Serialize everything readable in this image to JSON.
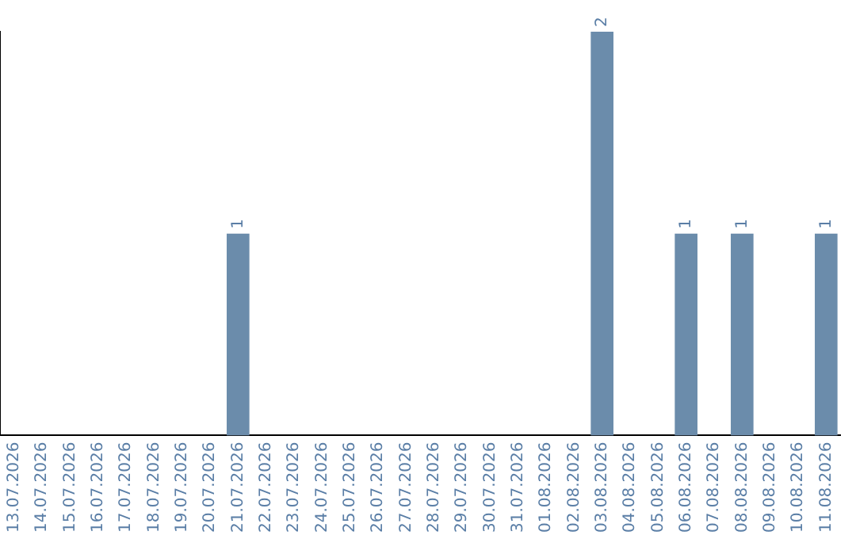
{
  "chart_data": {
    "type": "bar",
    "categories": [
      "13.07.2026",
      "14.07.2026",
      "15.07.2026",
      "16.07.2026",
      "17.07.2026",
      "18.07.2026",
      "19.07.2026",
      "20.07.2026",
      "21.07.2026",
      "22.07.2026",
      "23.07.2026",
      "24.07.2026",
      "25.07.2026",
      "26.07.2026",
      "27.07.2026",
      "28.07.2026",
      "29.07.2026",
      "30.07.2026",
      "31.07.2026",
      "01.08.2026",
      "02.08.2026",
      "03.08.2026",
      "04.08.2026",
      "05.08.2026",
      "06.08.2026",
      "07.08.2026",
      "08.08.2026",
      "09.08.2026",
      "10.08.2026",
      "11.08.2026"
    ],
    "values": [
      0,
      0,
      0,
      0,
      0,
      0,
      0,
      0,
      1,
      0,
      0,
      0,
      0,
      0,
      0,
      0,
      0,
      0,
      0,
      0,
      0,
      2,
      0,
      0,
      1,
      0,
      1,
      0,
      0,
      1
    ],
    "value_labels": [
      null,
      null,
      null,
      null,
      null,
      null,
      null,
      null,
      "1",
      null,
      null,
      null,
      null,
      null,
      null,
      null,
      null,
      null,
      null,
      null,
      null,
      "2",
      null,
      null,
      "1",
      null,
      "1",
      null,
      null,
      "1"
    ],
    "color": "#6b8cab",
    "tick_labels": "x",
    "grid": false,
    "legend": false
  }
}
